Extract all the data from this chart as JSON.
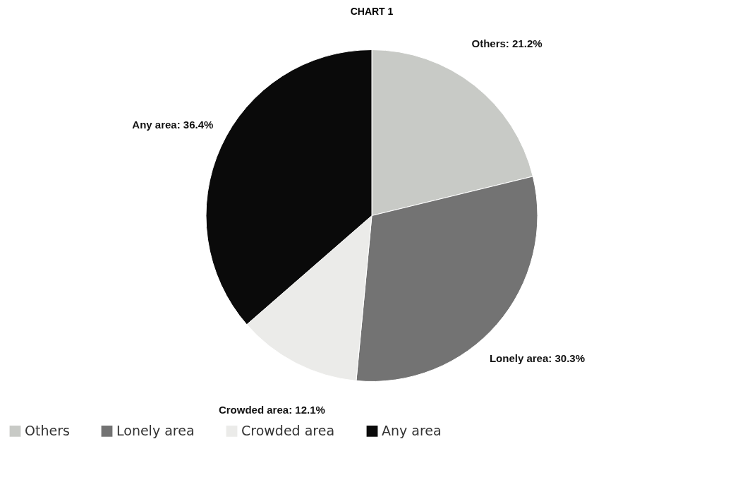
{
  "chart_data": {
    "type": "pie",
    "title": "CHART 1",
    "categories": [
      "Others",
      "Lonely area",
      "Crowded area",
      "Any area"
    ],
    "values": [
      21.2,
      30.3,
      12.1,
      36.4
    ],
    "colors": [
      "#c8cac6",
      "#737373",
      "#ebebe9",
      "#0a0a0a"
    ],
    "value_labels": [
      "Others: 21.2%",
      "Lonely area: 30.3%",
      "Crowded area: 12.1%",
      "Any area: 36.4%"
    ],
    "legend": "bottom"
  }
}
